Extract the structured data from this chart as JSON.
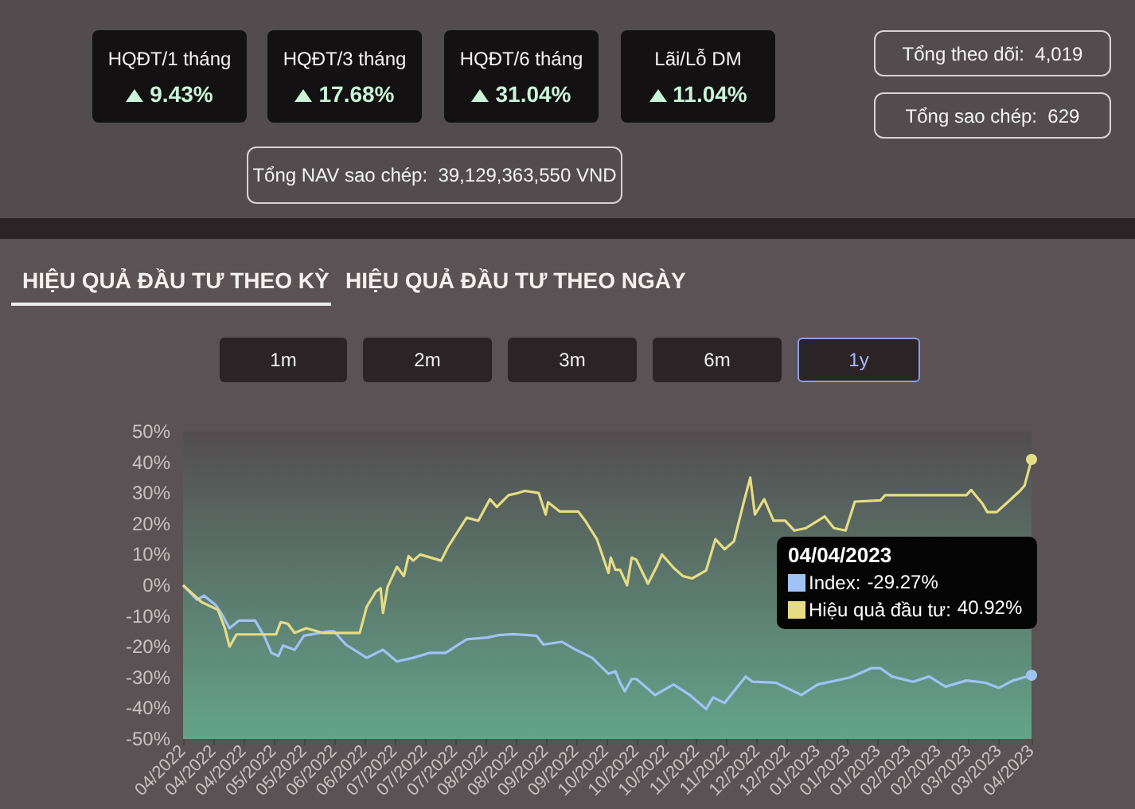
{
  "chart_data": [
    {
      "type": "other",
      "annotations": [
        "HQĐT/1 tháng",
        "9.43%",
        "HQĐT/3 tháng",
        "17.68%",
        "HQĐT/6 tháng",
        "31.04%",
        "Lãi/Lỗ DM",
        "11.04%",
        "Tổng NAV sao chép:  39,129,363,550 VND",
        "Tổng theo dõi:  4,019",
        "Tổng sao chép:  629",
        "HIỆU QUẢ ĐẦU TƯ THEO KỲ",
        "HIỆU QUẢ ĐẦU TƯ THEO NGÀY",
        "1m",
        "2m",
        "3m",
        "6m",
        "1y"
      ]
    },
    {
      "type": "line",
      "xlim": [
        "2022-04-04",
        "2023-04-04"
      ],
      "xticks": [
        {
          "value": "2022-04-04",
          "label": "04/2022"
        },
        {
          "value": "2022-04-17",
          "label": "04/2022"
        },
        {
          "value": "2022-04-30",
          "label": "04/2022"
        },
        {
          "value": "2022-05-13",
          "label": "05/2022"
        },
        {
          "value": "2022-05-26",
          "label": "05/2022"
        },
        {
          "value": "2022-06-08",
          "label": "06/2022"
        },
        {
          "value": "2022-06-21",
          "label": "06/2022"
        },
        {
          "value": "2022-07-04",
          "label": "07/2022"
        },
        {
          "value": "2022-07-17",
          "label": "07/2022"
        },
        {
          "value": "2022-07-30",
          "label": "07/2022"
        },
        {
          "value": "2022-08-12",
          "label": "08/2022"
        },
        {
          "value": "2022-08-25",
          "label": "08/2022"
        },
        {
          "value": "2022-09-07",
          "label": "09/2022"
        },
        {
          "value": "2022-09-20",
          "label": "09/2022"
        },
        {
          "value": "2022-10-03",
          "label": "10/2022"
        },
        {
          "value": "2022-10-16",
          "label": "10/2022"
        },
        {
          "value": "2022-10-29",
          "label": "10/2022"
        },
        {
          "value": "2022-11-11",
          "label": "11/2022"
        },
        {
          "value": "2022-11-24",
          "label": "11/2022"
        },
        {
          "value": "2022-12-07",
          "label": "12/2022"
        },
        {
          "value": "2022-12-20",
          "label": "12/2022"
        },
        {
          "value": "2023-01-02",
          "label": "01/2023"
        },
        {
          "value": "2023-01-15",
          "label": "01/2023"
        },
        {
          "value": "2023-01-28",
          "label": "01/2023"
        },
        {
          "value": "2023-02-10",
          "label": "02/2023"
        },
        {
          "value": "2023-02-23",
          "label": "02/2023"
        },
        {
          "value": "2023-03-08",
          "label": "03/2023"
        },
        {
          "value": "2023-03-21",
          "label": "03/2023"
        },
        {
          "value": "2023-04-04",
          "label": "04/2023"
        }
      ],
      "ylim": [
        -50,
        50
      ],
      "yticks": [
        {
          "value": -50,
          "label": "-50%"
        },
        {
          "value": -40,
          "label": "-40%"
        },
        {
          "value": -30,
          "label": "-30%"
        },
        {
          "value": -20,
          "label": "-20%"
        },
        {
          "value": -10,
          "label": "-10%"
        },
        {
          "value": 0,
          "label": "0%"
        },
        {
          "value": 10,
          "label": "10%"
        },
        {
          "value": 20,
          "label": "20%"
        },
        {
          "value": 30,
          "label": "30%"
        },
        {
          "value": 40,
          "label": "40%"
        },
        {
          "value": 50,
          "label": "50%"
        }
      ],
      "annotations": [
        "04/04/2023",
        "-29.27%",
        "40.92%"
      ],
      "legend": "right",
      "series": [
        {
          "name": "Index:",
          "color": "#9fc3f5",
          "x": [
            "2022-04-04",
            "2022-04-10",
            "2022-04-13",
            "2022-04-18",
            "2022-04-21",
            "2022-04-24",
            "2022-04-28",
            "2022-05-05",
            "2022-05-09",
            "2022-05-12",
            "2022-05-15",
            "2022-05-17",
            "2022-05-22",
            "2022-05-26",
            "2022-06-06",
            "2022-06-08",
            "2022-06-13",
            "2022-06-22",
            "2022-06-29",
            "2022-07-05",
            "2022-07-12",
            "2022-07-19",
            "2022-07-26",
            "2022-08-04",
            "2022-08-13",
            "2022-08-18",
            "2022-08-24",
            "2022-09-03",
            "2022-09-06",
            "2022-09-14",
            "2022-09-20",
            "2022-09-27",
            "2022-10-04",
            "2022-10-07",
            "2022-10-09",
            "2022-10-11",
            "2022-10-14",
            "2022-10-16",
            "2022-10-24",
            "2022-11-01",
            "2022-11-08",
            "2022-11-15",
            "2022-11-18",
            "2022-11-23",
            "2022-12-02",
            "2022-12-05",
            "2022-12-15",
            "2022-12-26",
            "2023-01-02",
            "2023-01-16",
            "2023-01-25",
            "2023-01-29",
            "2023-02-03",
            "2023-02-12",
            "2023-02-19",
            "2023-02-26",
            "2023-03-07",
            "2023-03-15",
            "2023-03-21",
            "2023-03-27",
            "2023-04-04"
          ],
          "values": [
            0,
            -4.7,
            -3.4,
            -6.4,
            -9.8,
            -14,
            -11.5,
            -11.5,
            -16.7,
            -22,
            -23,
            -19.6,
            -21,
            -16.4,
            -15,
            -15,
            -19.3,
            -23.6,
            -21,
            -24.8,
            -23.6,
            -22,
            -22,
            -17.6,
            -17,
            -16.2,
            -15.9,
            -16.4,
            -19.3,
            -18.4,
            -21,
            -23.6,
            -28.8,
            -28,
            -31.7,
            -34.5,
            -30.5,
            -30.5,
            -35.7,
            -32.3,
            -35.7,
            -40.3,
            -36.5,
            -38.3,
            -29.7,
            -31.4,
            -31.7,
            -35.7,
            -32.3,
            -30,
            -27,
            -27,
            -29.7,
            -31.4,
            -29.7,
            -33,
            -31,
            -31.7,
            -33.4,
            -31,
            -29.27
          ]
        },
        {
          "name": "Hiệu quả đầu tư:",
          "color": "#e6dc84",
          "x": [
            "2022-04-04",
            "2022-04-09",
            "2022-04-12",
            "2022-04-19",
            "2022-04-22",
            "2022-04-24",
            "2022-04-27",
            "2022-05-14",
            "2022-05-16",
            "2022-05-19",
            "2022-05-22",
            "2022-05-27",
            "2022-06-03",
            "2022-06-19",
            "2022-06-22",
            "2022-06-26",
            "2022-06-28",
            "2022-06-29",
            "2022-07-01",
            "2022-07-05",
            "2022-07-08",
            "2022-07-10",
            "2022-07-12",
            "2022-07-15",
            "2022-07-24",
            "2022-07-27",
            "2022-08-04",
            "2022-08-09",
            "2022-08-14",
            "2022-08-17",
            "2022-08-22",
            "2022-08-26",
            "2022-08-29",
            "2022-09-04",
            "2022-09-07",
            "2022-09-08",
            "2022-09-13",
            "2022-09-21",
            "2022-09-24",
            "2022-09-29",
            "2022-10-04",
            "2022-10-05",
            "2022-10-07",
            "2022-10-09",
            "2022-10-12",
            "2022-10-14",
            "2022-10-16",
            "2022-10-21",
            "2022-10-25",
            "2022-10-27",
            "2022-11-01",
            "2022-11-05",
            "2022-11-09",
            "2022-11-15",
            "2022-11-19",
            "2022-11-23",
            "2022-11-27",
            "2022-12-01",
            "2022-12-04",
            "2022-12-06",
            "2022-12-10",
            "2022-12-14",
            "2022-12-19",
            "2022-12-23",
            "2022-12-28",
            "2023-01-05",
            "2023-01-09",
            "2023-01-14",
            "2023-01-18",
            "2023-01-29",
            "2023-01-31",
            "2023-03-07",
            "2023-03-09",
            "2023-03-14",
            "2023-03-16",
            "2023-03-20",
            "2023-03-25",
            "2023-03-30",
            "2023-04-01",
            "2023-04-04"
          ],
          "values": [
            0,
            -3.4,
            -5.5,
            -8,
            -14,
            -20,
            -16,
            -16,
            -12,
            -12.5,
            -15.5,
            -14,
            -15.5,
            -15.5,
            -7,
            -2,
            -1,
            -9,
            -0.5,
            6,
            3,
            9.5,
            8,
            10,
            8,
            12.5,
            22,
            21,
            28,
            25.5,
            29.3,
            30,
            30.7,
            30,
            23,
            27,
            24,
            24,
            21,
            15,
            4,
            9,
            5,
            5,
            0,
            9,
            8.3,
            0.5,
            6.5,
            10,
            5.7,
            3,
            2.2,
            4.8,
            15,
            11.7,
            14.3,
            26.4,
            35,
            23,
            28,
            21,
            21,
            17.8,
            18.6,
            22.4,
            18.6,
            17.8,
            27.2,
            27.6,
            29.3,
            29.3,
            31,
            26.4,
            23.8,
            23.8,
            27.2,
            30.7,
            32.4,
            40.92
          ]
        }
      ]
    }
  ]
}
